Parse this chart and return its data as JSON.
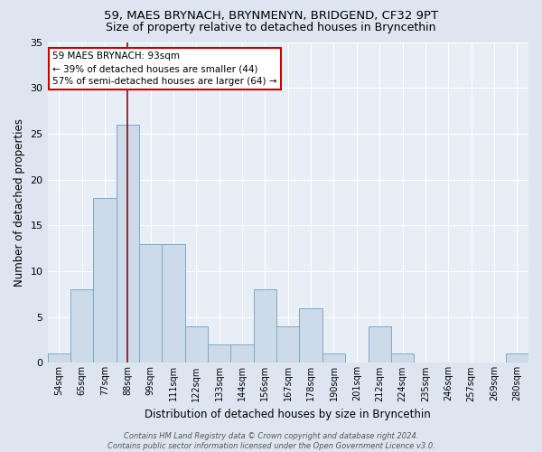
{
  "title1": "59, MAES BRYNACH, BRYNMENYN, BRIDGEND, CF32 9PT",
  "title2": "Size of property relative to detached houses in Bryncethin",
  "xlabel": "Distribution of detached houses by size in Bryncethin",
  "ylabel": "Number of detached properties",
  "bar_labels": [
    "54sqm",
    "65sqm",
    "77sqm",
    "88sqm",
    "99sqm",
    "111sqm",
    "122sqm",
    "133sqm",
    "144sqm",
    "156sqm",
    "167sqm",
    "178sqm",
    "190sqm",
    "201sqm",
    "212sqm",
    "224sqm",
    "235sqm",
    "246sqm",
    "257sqm",
    "269sqm",
    "280sqm"
  ],
  "bar_values": [
    1,
    8,
    18,
    26,
    13,
    13,
    4,
    2,
    2,
    8,
    4,
    6,
    1,
    0,
    4,
    1,
    0,
    0,
    0,
    0,
    1
  ],
  "bar_color": "#cddaea",
  "bar_edge_color": "#7fa8c8",
  "vline_x_idx": 3,
  "vline_color": "#990000",
  "annotation_text": "59 MAES BRYNACH: 93sqm\n← 39% of detached houses are smaller (44)\n57% of semi-detached houses are larger (64) →",
  "annotation_box_color": "#ffffff",
  "annotation_box_edge": "#cc0000",
  "ylim": [
    0,
    35
  ],
  "yticks": [
    0,
    5,
    10,
    15,
    20,
    25,
    30,
    35
  ],
  "footer": "Contains HM Land Registry data © Crown copyright and database right 2024.\nContains public sector information licensed under the Open Government Licence v3.0.",
  "bg_color": "#dde6f0",
  "plot_bg_color": "#e8eef6",
  "grid_color": "#ffffff",
  "title1_fontsize": 9.5,
  "title2_fontsize": 9,
  "ylabel_fontsize": 8.5,
  "xlabel_fontsize": 8.5,
  "tick_fontsize": 7,
  "annotation_fontsize": 7.5,
  "footer_fontsize": 6
}
